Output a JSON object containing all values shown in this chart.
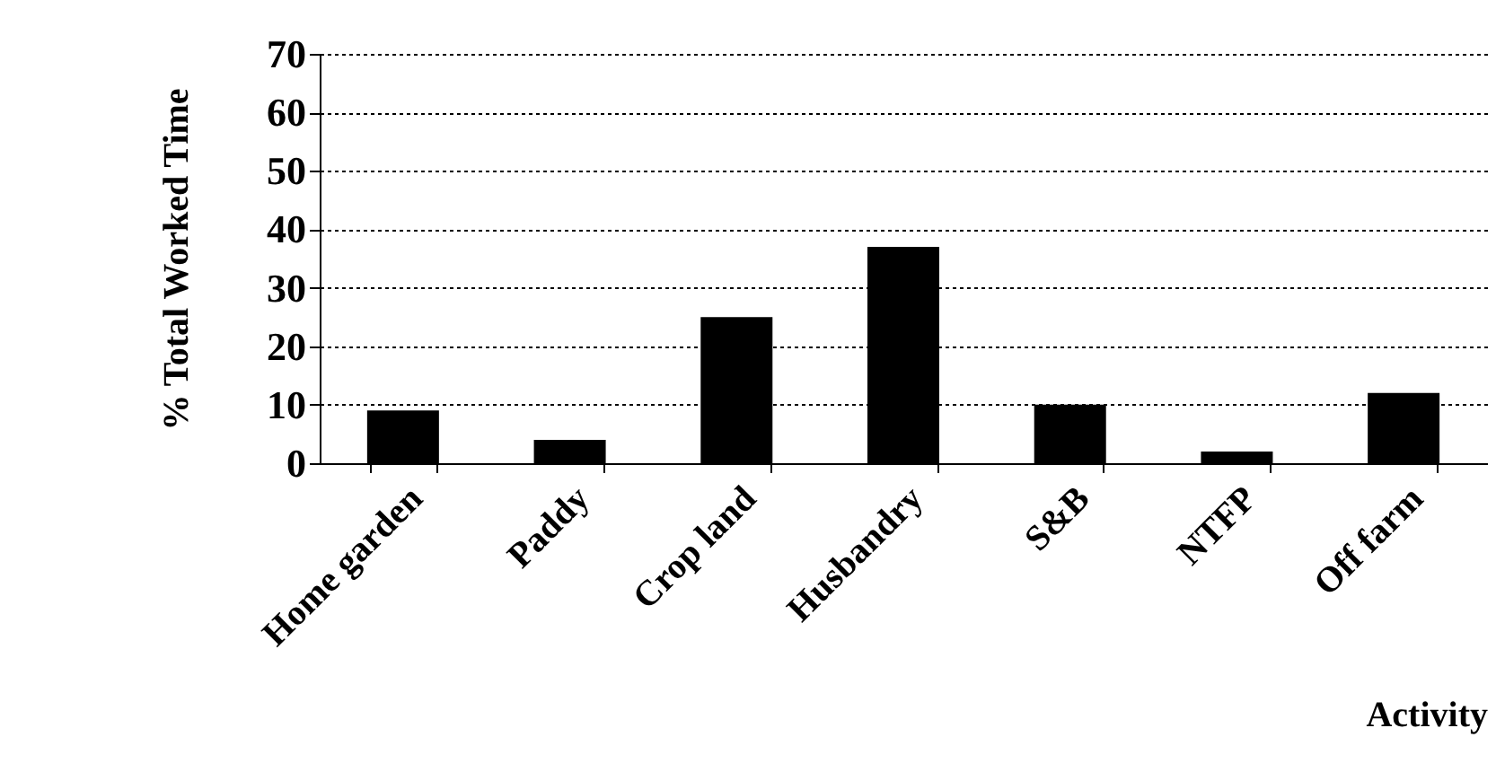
{
  "chart_data": {
    "type": "bar",
    "xlabel": "Activity",
    "ylabel": "% Total Worked Time",
    "categories": [
      "Home garden",
      "Paddy",
      "Crop land",
      "Husbandry",
      "S&B",
      "NTFP",
      "Off farm"
    ],
    "values": [
      9,
      4,
      25,
      37,
      10,
      2,
      12
    ],
    "color": "#000000",
    "ylim": [
      0,
      70
    ],
    "yticks": [
      0,
      10,
      20,
      30,
      40,
      50,
      60,
      70
    ],
    "grid": "y",
    "line_style": "dashed"
  }
}
